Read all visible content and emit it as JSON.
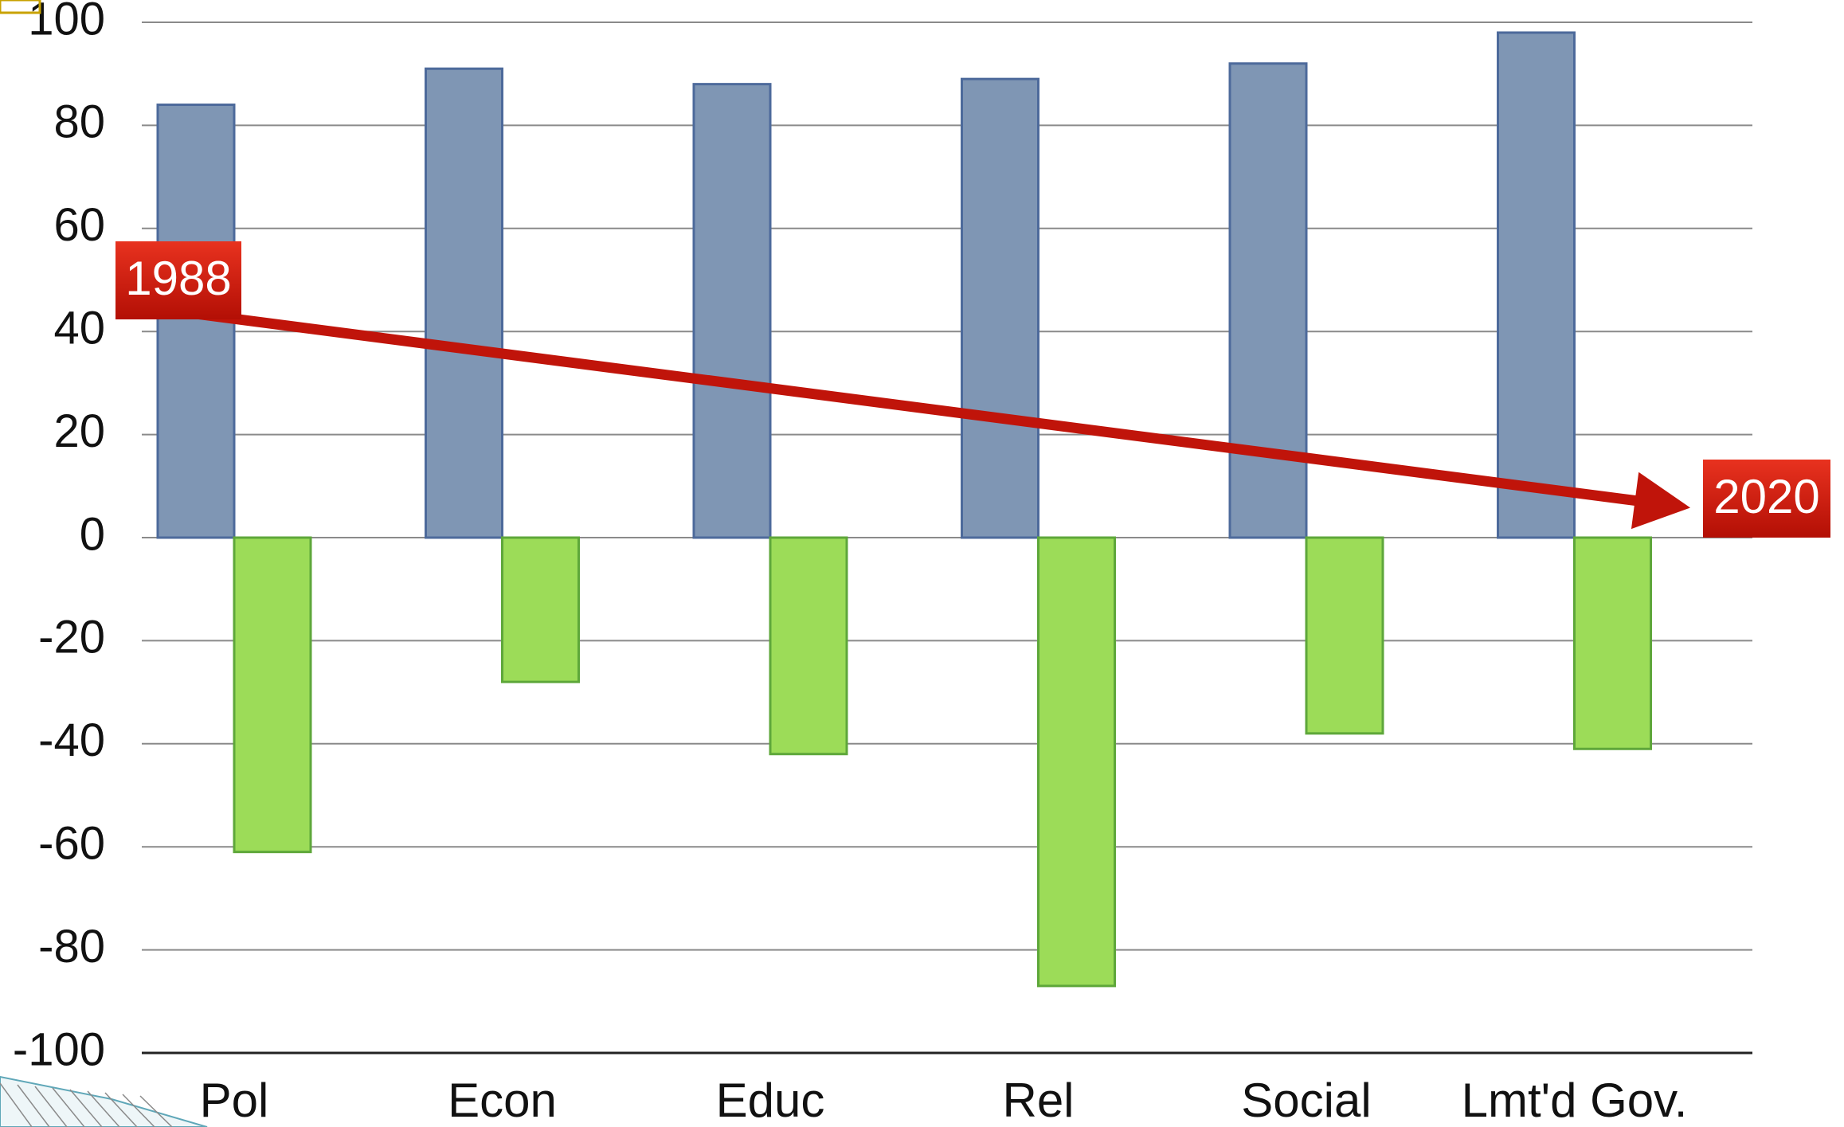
{
  "chart_data": {
    "type": "bar",
    "categories": [
      "Pol",
      "Econ",
      "Educ",
      "Rel",
      "Social",
      "Lmt'd Gov."
    ],
    "series": [
      {
        "values": [
          84,
          91,
          88,
          89,
          92,
          98
        ],
        "color": "#7f96b4"
      },
      {
        "values": [
          -61,
          -28,
          -42,
          -87,
          -38,
          -41
        ],
        "color": "#9cdc58"
      }
    ],
    "ylim": [
      -100,
      100
    ],
    "yticks": [
      100,
      80,
      60,
      40,
      20,
      0,
      -20,
      -40,
      -60,
      -80,
      -100
    ],
    "ytick_labels": [
      "100",
      "80",
      "60",
      "40",
      "20",
      "0",
      "-20",
      "-40",
      "-60",
      "-80",
      "-100"
    ],
    "grid": true,
    "annotations": [
      {
        "text": "1988",
        "position": "start of arrow, left"
      },
      {
        "text": "2020",
        "position": "end of arrow, right"
      }
    ],
    "arrow": {
      "label": "decline from 1988 to 2020",
      "color": "#c0140a"
    },
    "colors": {
      "badge": "#d11a0e",
      "grid": "#8a8a8a",
      "bar_border_blue": "#4d6a9b",
      "bar_border_green": "#5ea73a"
    }
  }
}
